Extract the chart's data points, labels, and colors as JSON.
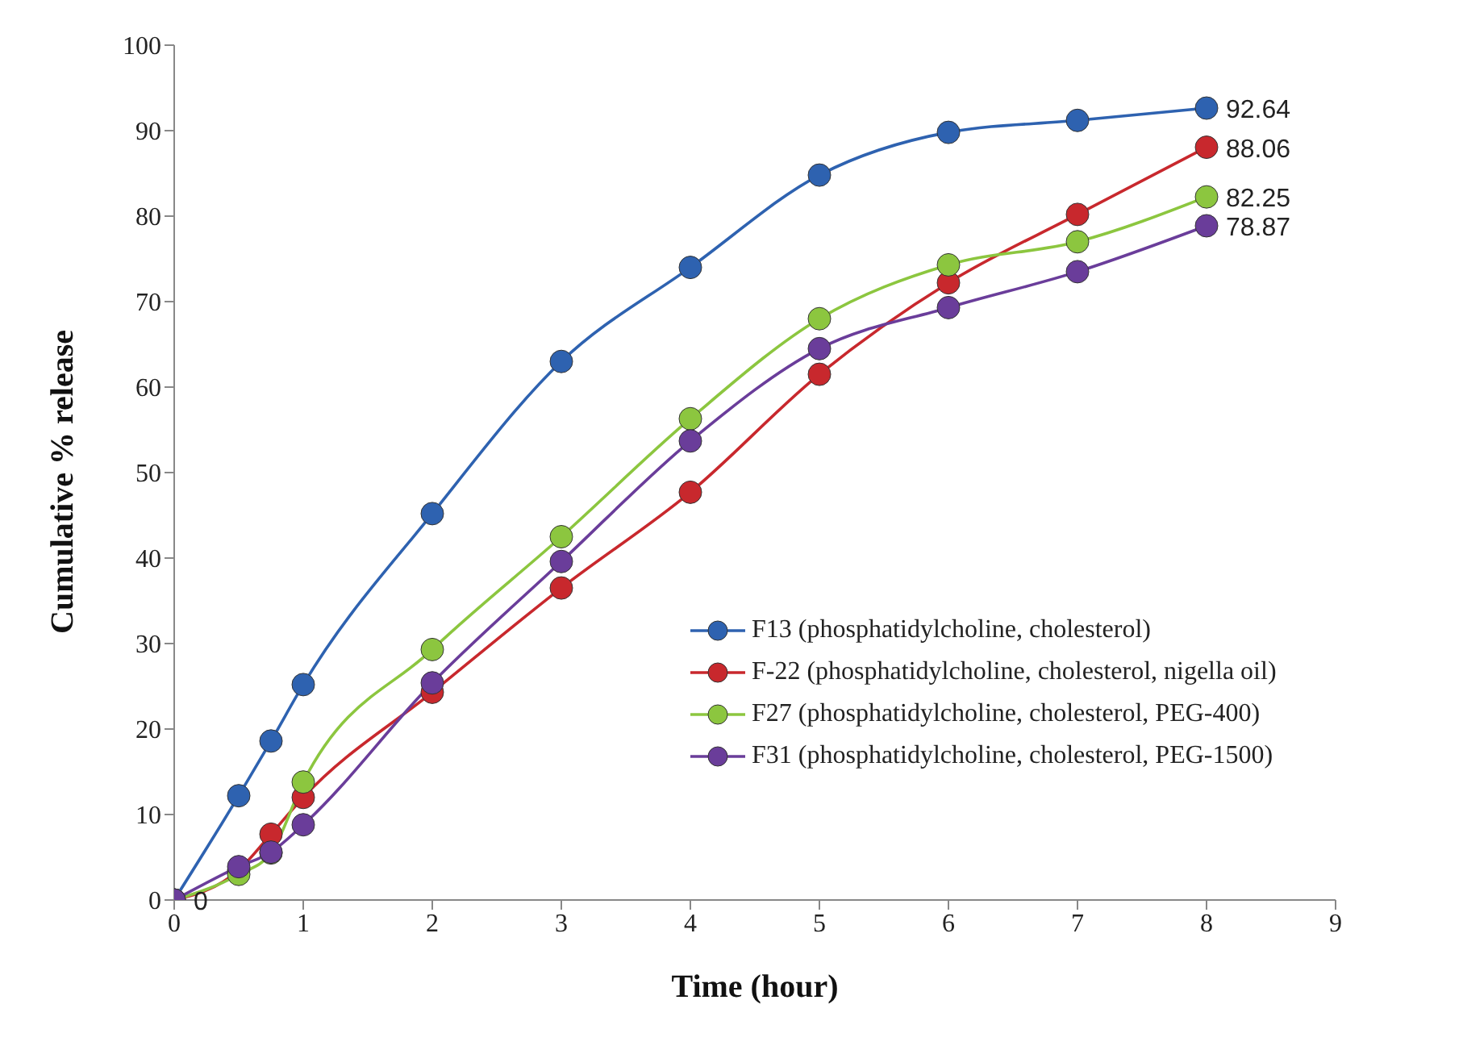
{
  "chart_data": {
    "type": "line",
    "xlabel": "Time (hour)",
    "ylabel": "Cumulative % release",
    "x": [
      0,
      0.5,
      0.75,
      1,
      2,
      3,
      4,
      5,
      6,
      7,
      8
    ],
    "xlim": [
      0,
      9
    ],
    "xticks": [
      0,
      1,
      2,
      3,
      4,
      5,
      6,
      7,
      8,
      9
    ],
    "ylim": [
      0,
      100
    ],
    "yticks": [
      0,
      10,
      20,
      30,
      40,
      50,
      60,
      70,
      80,
      90,
      100
    ],
    "grid": false,
    "legend": "bottom right",
    "marker": "circle",
    "line_style": "solid",
    "series": [
      {
        "name": "F13 (phosphatidylcholine, cholesterol)",
        "color": "#2e62b0",
        "values": [
          0,
          12.2,
          18.6,
          25.2,
          45.2,
          63,
          74,
          84.8,
          89.8,
          91.2,
          92.64
        ],
        "value_labels": [
          null,
          null,
          null,
          null,
          null,
          null,
          null,
          null,
          null,
          null,
          "92.64"
        ]
      },
      {
        "name": "F-22 (phosphatidylcholine, cholesterol, nigella oil)",
        "color": "#c8282d",
        "values": [
          0,
          3.5,
          7.7,
          12,
          24.3,
          36.5,
          47.7,
          61.5,
          72.2,
          80.2,
          88.06
        ],
        "value_labels": [
          null,
          null,
          null,
          null,
          null,
          null,
          null,
          null,
          null,
          null,
          "88.06"
        ]
      },
      {
        "name": "F27 (phosphatidylcholine, cholesterol, PEG-400)",
        "color": "#8cc63f",
        "values": [
          0,
          3,
          5.5,
          13.8,
          29.3,
          42.5,
          56.3,
          68,
          74.3,
          77,
          82.25
        ],
        "value_labels": [
          null,
          null,
          null,
          null,
          null,
          null,
          null,
          null,
          null,
          null,
          "82.25"
        ]
      },
      {
        "name": "F31 (phosphatidylcholine, cholesterol, PEG-1500)",
        "color": "#6a3d9a",
        "values": [
          0,
          3.9,
          5.6,
          8.8,
          25.4,
          39.6,
          53.7,
          64.5,
          69.3,
          73.5,
          78.87
        ],
        "value_labels": [
          "0",
          null,
          null,
          null,
          null,
          null,
          null,
          null,
          null,
          null,
          "78.87"
        ]
      }
    ]
  }
}
